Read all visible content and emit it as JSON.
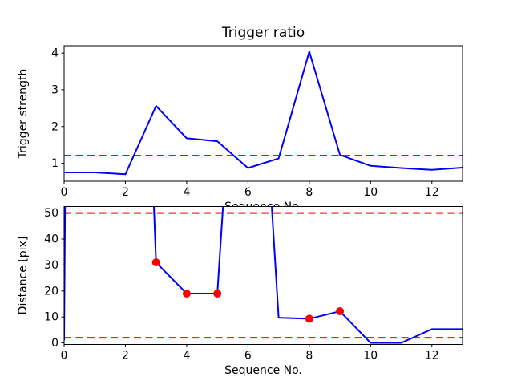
{
  "figure": {
    "background": "#ffffff",
    "accent_line_color": "#0000ff",
    "threshold_color": "#ff0000",
    "marker_color": "#ff0000"
  },
  "chart_data": [
    {
      "type": "line",
      "title": "Trigger ratio",
      "xlabel": "Sequence No.",
      "ylabel": "Trigger strength",
      "x": [
        0,
        1,
        2,
        3,
        4,
        5,
        6,
        7,
        8,
        9,
        10,
        11,
        12,
        13
      ],
      "series": [
        {
          "name": "trigger-strength",
          "color": "#0000ff",
          "values": [
            0.75,
            0.75,
            0.7,
            2.56,
            1.68,
            1.6,
            0.87,
            1.13,
            4.04,
            1.23,
            0.93,
            0.87,
            0.82,
            0.88
          ]
        }
      ],
      "thresholds": [
        {
          "value": 1.21,
          "color": "#ff0000",
          "style": "dashed"
        }
      ],
      "xlim": [
        0,
        13
      ],
      "ylim": [
        0.51,
        4.2
      ],
      "xticks": [
        0,
        2,
        4,
        6,
        8,
        10,
        12
      ],
      "yticks": [
        1,
        2,
        3,
        4
      ],
      "grid": false,
      "legend": null
    },
    {
      "type": "line",
      "title": "",
      "xlabel": "Sequence No.",
      "ylabel": "Distance [pix]",
      "x": [
        0,
        1,
        2,
        3,
        4,
        5,
        6,
        7,
        8,
        9,
        10,
        11,
        12,
        13
      ],
      "series": [
        {
          "name": "distance",
          "color": "#0000ff",
          "values": [
            1,
            1700,
            340,
            31,
            19,
            19,
            200,
            9.7,
            9.3,
            12.2,
            0,
            0,
            5.3,
            5.3
          ],
          "offscale_estimated_indices": [
            1,
            2,
            6
          ]
        }
      ],
      "markers": {
        "color": "#ff0000",
        "x": [
          3,
          4,
          5,
          8,
          9
        ],
        "y": [
          31,
          19,
          19,
          9.3,
          12.2
        ]
      },
      "thresholds": [
        {
          "value": 50,
          "color": "#ff0000",
          "style": "dashed"
        },
        {
          "value": 2,
          "color": "#ff0000",
          "style": "dashed"
        }
      ],
      "xlim": [
        0,
        13
      ],
      "ylim": [
        -0.6,
        52.5
      ],
      "xticks": [
        0,
        2,
        4,
        6,
        8,
        10,
        12
      ],
      "yticks": [
        0,
        10,
        20,
        30,
        40,
        50
      ],
      "grid": false,
      "legend": null
    }
  ]
}
